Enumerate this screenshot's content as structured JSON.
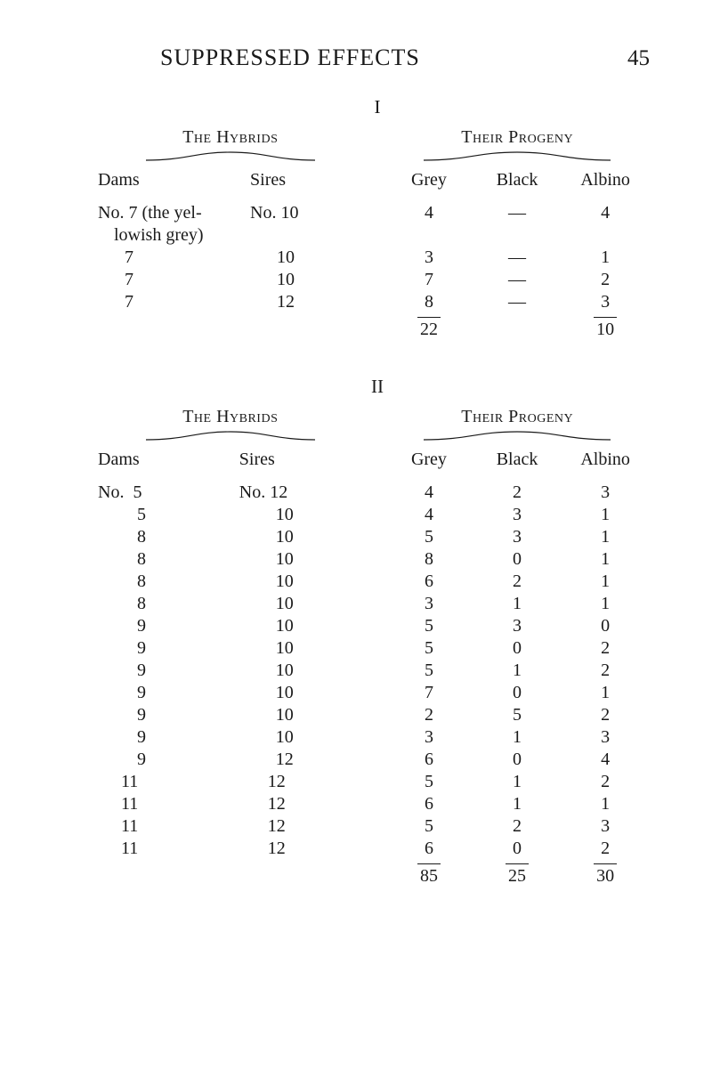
{
  "header": {
    "title": "SUPPRESSED EFFECTS",
    "page_number": "45"
  },
  "numerals": {
    "one": "I",
    "two": "II"
  },
  "labels": {
    "hybrids": "The Hybrids",
    "progeny": "Their Progeny",
    "dams": "Dams",
    "sires": "Sires",
    "grey": "Grey",
    "black": "Black",
    "albino": "Albino",
    "no_prefix": "No.",
    "dash": "—"
  },
  "table1": {
    "hybrids": {
      "first_dam": "No. 7 (the yel-",
      "first_dam_wrap": "lowish grey)",
      "first_sire": "No. 10",
      "rows": [
        {
          "dam": "7",
          "sire": "10"
        },
        {
          "dam": "7",
          "sire": "10"
        },
        {
          "dam": "7",
          "sire": "12"
        }
      ]
    },
    "progeny": {
      "rows": [
        {
          "grey": "4",
          "black": "—",
          "albino": "4"
        },
        {
          "grey": "3",
          "black": "—",
          "albino": "1"
        },
        {
          "grey": "7",
          "black": "—",
          "albino": "2"
        },
        {
          "grey": "8",
          "black": "—",
          "albino": "3"
        }
      ],
      "totals": {
        "grey": "22",
        "black": "",
        "albino": "10"
      }
    }
  },
  "table2": {
    "hybrids": {
      "first_dam": "No.  5",
      "first_sire": "No. 12",
      "rows": [
        {
          "dam": "5",
          "sire": "10"
        },
        {
          "dam": "8",
          "sire": "10"
        },
        {
          "dam": "8",
          "sire": "10"
        },
        {
          "dam": "8",
          "sire": "10"
        },
        {
          "dam": "8",
          "sire": "10"
        },
        {
          "dam": "9",
          "sire": "10"
        },
        {
          "dam": "9",
          "sire": "10"
        },
        {
          "dam": "9",
          "sire": "10"
        },
        {
          "dam": "9",
          "sire": "10"
        },
        {
          "dam": "9",
          "sire": "10"
        },
        {
          "dam": "9",
          "sire": "10"
        },
        {
          "dam": "9",
          "sire": "12"
        },
        {
          "dam": "11",
          "sire": "12"
        },
        {
          "dam": "11",
          "sire": "12"
        },
        {
          "dam": "11",
          "sire": "12"
        },
        {
          "dam": "11",
          "sire": "12"
        }
      ]
    },
    "progeny": {
      "rows": [
        {
          "grey": "4",
          "black": "2",
          "albino": "3"
        },
        {
          "grey": "4",
          "black": "3",
          "albino": "1"
        },
        {
          "grey": "5",
          "black": "3",
          "albino": "1"
        },
        {
          "grey": "8",
          "black": "0",
          "albino": "1"
        },
        {
          "grey": "6",
          "black": "2",
          "albino": "1"
        },
        {
          "grey": "3",
          "black": "1",
          "albino": "1"
        },
        {
          "grey": "5",
          "black": "3",
          "albino": "0"
        },
        {
          "grey": "5",
          "black": "0",
          "albino": "2"
        },
        {
          "grey": "5",
          "black": "1",
          "albino": "2"
        },
        {
          "grey": "7",
          "black": "0",
          "albino": "1"
        },
        {
          "grey": "2",
          "black": "5",
          "albino": "2"
        },
        {
          "grey": "3",
          "black": "1",
          "albino": "3"
        },
        {
          "grey": "6",
          "black": "0",
          "albino": "4"
        },
        {
          "grey": "5",
          "black": "1",
          "albino": "2"
        },
        {
          "grey": "6",
          "black": "1",
          "albino": "1"
        },
        {
          "grey": "5",
          "black": "2",
          "albino": "3"
        },
        {
          "grey": "6",
          "black": "0",
          "albino": "2"
        }
      ],
      "totals": {
        "grey": "85",
        "black": "25",
        "albino": "30"
      }
    }
  },
  "style": {
    "text_color": "#1a1a1a",
    "background_color": "#ffffff",
    "font_family": "Times New Roman",
    "title_fontsize": 26,
    "body_fontsize": 20
  }
}
